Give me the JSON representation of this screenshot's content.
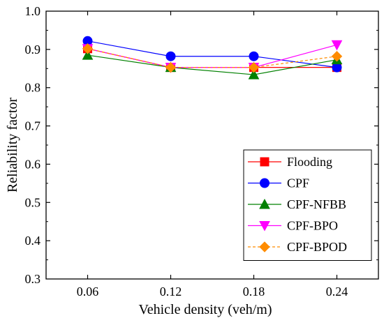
{
  "chart_data": {
    "type": "line",
    "title": "",
    "xlabel": "Vehicle density (veh/m)",
    "ylabel": "Reliability factor",
    "categories": [
      "0.06",
      "0.12",
      "0.18",
      "0.24"
    ],
    "ylim": [
      0.3,
      1.0
    ],
    "yticks": [
      "0.3",
      "0.4",
      "0.5",
      "0.6",
      "0.7",
      "0.8",
      "0.9",
      "1.0"
    ],
    "grid": false,
    "legend_position": "bottom-right",
    "series": [
      {
        "name": "Flooding",
        "values": [
          0.902,
          0.853,
          0.853,
          0.853
        ],
        "color": "#ff0000",
        "marker": "square",
        "dash": "solid"
      },
      {
        "name": "CPF",
        "values": [
          0.922,
          0.882,
          0.882,
          0.853
        ],
        "color": "#0000ff",
        "marker": "circle",
        "dash": "solid"
      },
      {
        "name": "CPF-NFBB",
        "values": [
          0.885,
          0.853,
          0.834,
          0.873
        ],
        "color": "#008000",
        "marker": "triangle-up",
        "dash": "solid"
      },
      {
        "name": "CPF-BPO",
        "values": [
          0.902,
          0.853,
          0.853,
          0.912
        ],
        "color": "#ff00ff",
        "marker": "triangle-down",
        "dash": "solid"
      },
      {
        "name": "CPF-BPOD",
        "values": [
          0.902,
          0.853,
          0.853,
          0.882
        ],
        "color": "#ff8c00",
        "marker": "diamond",
        "dash": "dashed"
      }
    ]
  }
}
